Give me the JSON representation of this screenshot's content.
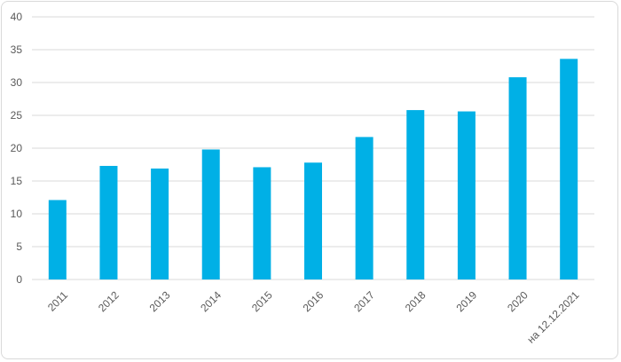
{
  "chart_data": {
    "type": "bar",
    "title": "",
    "xlabel": "",
    "ylabel": "",
    "categories": [
      "2011",
      "2012",
      "2013",
      "2014",
      "2015",
      "2016",
      "2017",
      "2018",
      "2019",
      "2020",
      "на 12.12.2021"
    ],
    "values": [
      12.1,
      17.3,
      16.9,
      19.8,
      17.1,
      17.8,
      21.7,
      25.8,
      25.6,
      30.8,
      33.6
    ],
    "ylim": [
      0,
      40
    ],
    "yticks": [
      "0",
      "5",
      "10",
      "15",
      "20",
      "25",
      "30",
      "35",
      "40"
    ],
    "grid": "horizontal",
    "bar_color": "#00b0e6",
    "grid_color": "#d9d9d9",
    "legend": "none"
  }
}
